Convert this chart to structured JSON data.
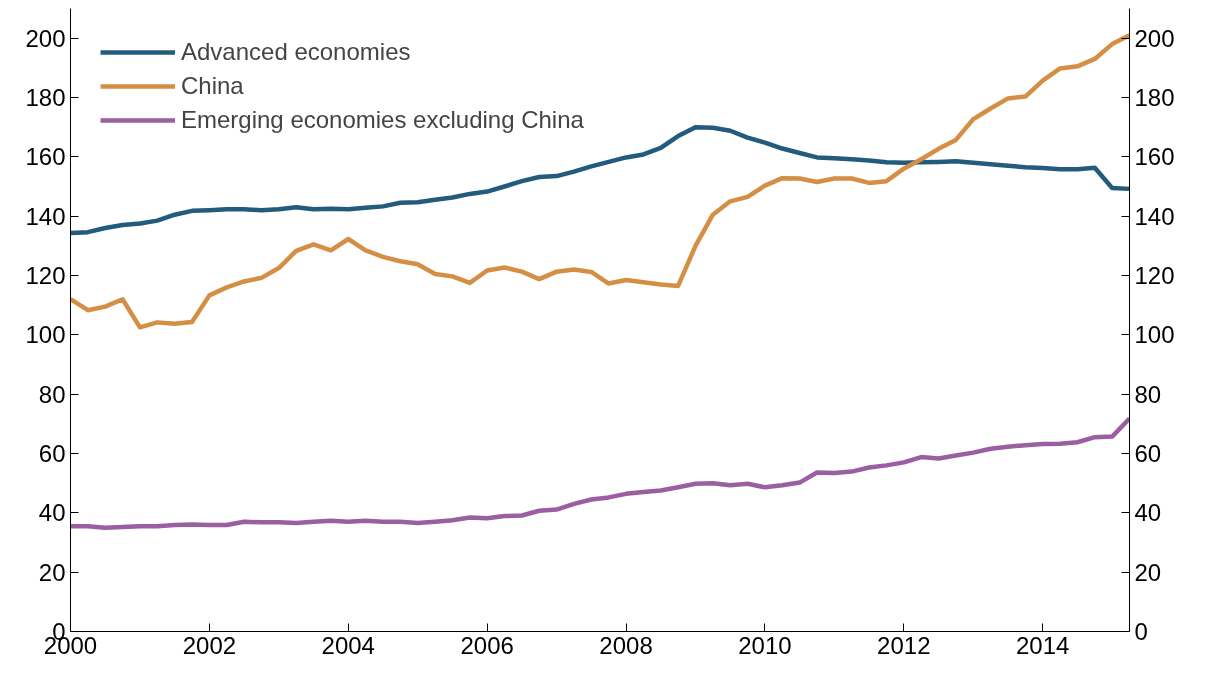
{
  "chart_data": {
    "type": "line",
    "x": [
      2000.0,
      2000.25,
      2000.5,
      2000.75,
      2001.0,
      2001.25,
      2001.5,
      2001.75,
      2002.0,
      2002.25,
      2002.5,
      2002.75,
      2003.0,
      2003.25,
      2003.5,
      2003.75,
      2004.0,
      2004.25,
      2004.5,
      2004.75,
      2005.0,
      2005.25,
      2005.5,
      2005.75,
      2006.0,
      2006.25,
      2006.5,
      2006.75,
      2007.0,
      2007.25,
      2007.5,
      2007.75,
      2008.0,
      2008.25,
      2008.5,
      2008.75,
      2009.0,
      2009.25,
      2009.5,
      2009.75,
      2010.0,
      2010.25,
      2010.5,
      2010.75,
      2011.0,
      2011.25,
      2011.5,
      2011.75,
      2012.0,
      2012.25,
      2012.5,
      2012.75,
      2013.0,
      2013.25,
      2013.5,
      2013.75,
      2014.0,
      2014.25,
      2014.5,
      2014.75,
      2015.0,
      2015.25
    ],
    "series": [
      {
        "name": "Advanced economies",
        "color": "#225b7c",
        "values": [
          134.3,
          134.6,
          136,
          137,
          137.5,
          138.5,
          140.5,
          141.8,
          142,
          142.3,
          142.3,
          142,
          142.3,
          143,
          142.3,
          142.5,
          142.3,
          142.8,
          143.3,
          144.5,
          144.7,
          145.5,
          146.3,
          147.5,
          148.3,
          150,
          151.8,
          153.2,
          153.5,
          155,
          156.8,
          158.3,
          159.8,
          160.8,
          163,
          167,
          170,
          169.8,
          168.8,
          166.5,
          164.8,
          162.8,
          161.3,
          159.8,
          159.5,
          159.2,
          158.8,
          158.2,
          158,
          158.2,
          158.3,
          158.5,
          158,
          157.5,
          157,
          156.5,
          156.2,
          155.8,
          155.8,
          156.3,
          149.5,
          149.2
        ]
      },
      {
        "name": "China",
        "color": "#d48f45",
        "values": [
          112,
          108.3,
          109.5,
          112,
          102.5,
          104.2,
          103.7,
          104.3,
          113.3,
          116,
          118,
          119.2,
          122.5,
          128.3,
          130.5,
          128.5,
          132.3,
          128.5,
          126.3,
          124.8,
          123.8,
          120.5,
          119.7,
          117.5,
          121.7,
          122.7,
          121.3,
          118.8,
          121.3,
          122,
          121.2,
          117.3,
          118.5,
          117.7,
          117,
          116.5,
          130,
          140.5,
          145,
          146.5,
          150.3,
          152.8,
          152.7,
          151.5,
          152.7,
          152.7,
          151.2,
          151.8,
          156,
          159.2,
          162.7,
          165.7,
          172.7,
          176.3,
          179.7,
          180.3,
          185.7,
          189.8,
          190.5,
          193,
          198,
          201
        ]
      },
      {
        "name": "Emerging economies excluding China",
        "color": "#9b5ea2",
        "values": [
          35.5,
          35.5,
          35,
          35.2,
          35.5,
          35.5,
          35.9,
          36.1,
          35.9,
          35.9,
          37,
          36.8,
          36.8,
          36.6,
          37,
          37.3,
          37,
          37.3,
          37,
          37,
          36.6,
          37,
          37.5,
          38.4,
          38.2,
          38.9,
          39.1,
          40.7,
          41.1,
          43,
          44.5,
          45.2,
          46.4,
          47,
          47.5,
          48.6,
          49.8,
          50,
          49.3,
          49.8,
          48.6,
          49.3,
          50.2,
          53.6,
          53.4,
          53.9,
          55.3,
          56,
          57,
          58.8,
          58.3,
          59.3,
          60.3,
          61.6,
          62.3,
          62.8,
          63.2,
          63.3,
          63.8,
          65.5,
          65.7,
          71.8
        ]
      }
    ],
    "xlim": [
      2000,
      2015.25
    ],
    "xticks": [
      2000,
      2002,
      2004,
      2006,
      2008,
      2010,
      2012,
      2014
    ],
    "ylim": [
      0,
      210
    ],
    "yticks": [
      0,
      20,
      40,
      60,
      80,
      100,
      120,
      140,
      160,
      180,
      200
    ],
    "y2lim": [
      0,
      210
    ],
    "y2ticks": [
      0,
      20,
      40,
      60,
      80,
      100,
      120,
      140,
      160,
      180,
      200
    ],
    "legend": "top left",
    "grid": false,
    "marker": "none",
    "line_style": "solid"
  }
}
